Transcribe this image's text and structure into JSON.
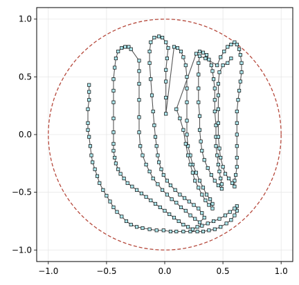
{
  "chart_data": {
    "type": "line",
    "title": "",
    "xlabel": "",
    "ylabel": "",
    "xlim": [
      -1.1,
      1.1
    ],
    "ylim": [
      -1.1,
      1.1
    ],
    "grid": true,
    "aspect": "equal",
    "x_ticks": [
      -1.0,
      -0.5,
      0.0,
      0.5,
      1.0
    ],
    "x_tick_labels": [
      "−1.0",
      "−0.5",
      "0.0",
      "0.5",
      "1.0"
    ],
    "y_ticks": [
      -1.0,
      -0.5,
      0.0,
      0.5,
      1.0
    ],
    "y_tick_labels": [
      "−1.0",
      "−0.5",
      "0.0",
      "0.5",
      "1.0"
    ],
    "colors": {
      "path_line": "#555555",
      "marker_fill": "#aee6ec",
      "marker_edge": "#000000",
      "circle": "#b5473a",
      "grid": "#e6e6e6"
    },
    "circle": {
      "center": [
        0,
        0
      ],
      "radius": 1.0,
      "style": "dashed"
    },
    "series": [
      {
        "marker": "square",
        "points": [
          [
            -0.65,
            0.43
          ],
          [
            -0.65,
            0.37
          ],
          [
            -0.65,
            0.3
          ],
          [
            -0.66,
            0.22
          ],
          [
            -0.66,
            0.1
          ],
          [
            -0.66,
            0.04
          ],
          [
            -0.65,
            -0.02
          ],
          [
            -0.64,
            -0.1
          ],
          [
            -0.63,
            -0.18
          ],
          [
            -0.62,
            -0.24
          ],
          [
            -0.6,
            -0.3
          ],
          [
            -0.58,
            -0.36
          ],
          [
            -0.56,
            -0.42
          ],
          [
            -0.53,
            -0.48
          ],
          [
            -0.5,
            -0.53
          ],
          [
            -0.47,
            -0.58
          ],
          [
            -0.44,
            -0.63
          ],
          [
            -0.41,
            -0.67
          ],
          [
            -0.37,
            -0.71
          ],
          [
            -0.33,
            -0.75
          ],
          [
            -0.29,
            -0.78
          ],
          [
            -0.24,
            -0.8
          ],
          [
            -0.19,
            -0.81
          ],
          [
            -0.13,
            -0.82
          ],
          [
            -0.07,
            -0.83
          ],
          [
            -0.01,
            -0.83
          ],
          [
            0.05,
            -0.84
          ],
          [
            0.1,
            -0.84
          ],
          [
            0.16,
            -0.84
          ],
          [
            0.22,
            -0.84
          ],
          [
            0.28,
            -0.84
          ],
          [
            0.33,
            -0.84
          ],
          [
            0.38,
            -0.83
          ],
          [
            0.43,
            -0.82
          ],
          [
            0.48,
            -0.8
          ],
          [
            0.53,
            -0.77
          ],
          [
            0.57,
            -0.74
          ],
          [
            0.6,
            -0.7
          ],
          [
            0.62,
            -0.66
          ],
          [
            0.62,
            -0.62
          ],
          [
            0.6,
            -0.64
          ],
          [
            0.56,
            -0.67
          ],
          [
            0.52,
            -0.7
          ],
          [
            0.47,
            -0.73
          ],
          [
            0.42,
            -0.75
          ],
          [
            0.37,
            -0.77
          ],
          [
            0.32,
            -0.79
          ],
          [
            0.28,
            -0.8
          ],
          [
            0.24,
            -0.82
          ],
          [
            0.2,
            -0.8
          ],
          [
            0.16,
            -0.78
          ],
          [
            0.12,
            -0.75
          ],
          [
            0.08,
            -0.72
          ],
          [
            0.04,
            -0.69
          ],
          [
            0.0,
            -0.66
          ],
          [
            -0.04,
            -0.63
          ],
          [
            -0.08,
            -0.6
          ],
          [
            -0.12,
            -0.57
          ],
          [
            -0.16,
            -0.54
          ],
          [
            -0.2,
            -0.51
          ],
          [
            -0.24,
            -0.48
          ],
          [
            -0.28,
            -0.45
          ],
          [
            -0.32,
            -0.42
          ],
          [
            -0.35,
            -0.38
          ],
          [
            -0.38,
            -0.34
          ],
          [
            -0.4,
            -0.3
          ],
          [
            -0.42,
            -0.25
          ],
          [
            -0.43,
            -0.2
          ],
          [
            -0.44,
            -0.14
          ],
          [
            -0.44,
            -0.08
          ],
          [
            -0.44,
            0.02
          ],
          [
            -0.44,
            0.14
          ],
          [
            -0.44,
            0.28
          ],
          [
            -0.44,
            0.38
          ],
          [
            -0.44,
            0.48
          ],
          [
            -0.43,
            0.58
          ],
          [
            -0.42,
            0.66
          ],
          [
            -0.4,
            0.72
          ],
          [
            -0.37,
            0.75
          ],
          [
            -0.34,
            0.76
          ],
          [
            -0.31,
            0.76
          ],
          [
            -0.29,
            0.74
          ],
          [
            -0.22,
            0.64
          ],
          [
            -0.22,
            0.55
          ],
          [
            -0.22,
            0.44
          ],
          [
            -0.22,
            0.3
          ],
          [
            -0.22,
            0.15
          ],
          [
            -0.22,
            0.02
          ],
          [
            -0.21,
            -0.1
          ],
          [
            -0.19,
            -0.18
          ],
          [
            -0.16,
            -0.26
          ],
          [
            -0.13,
            -0.32
          ],
          [
            -0.1,
            -0.38
          ],
          [
            -0.06,
            -0.43
          ],
          [
            -0.02,
            -0.48
          ],
          [
            0.02,
            -0.52
          ],
          [
            0.06,
            -0.56
          ],
          [
            0.1,
            -0.59
          ],
          [
            0.14,
            -0.63
          ],
          [
            0.18,
            -0.66
          ],
          [
            0.22,
            -0.7
          ],
          [
            0.26,
            -0.73
          ],
          [
            0.3,
            -0.76
          ],
          [
            0.34,
            -0.72
          ],
          [
            0.32,
            -0.68
          ],
          [
            0.29,
            -0.64
          ],
          [
            0.25,
            -0.61
          ],
          [
            0.21,
            -0.58
          ],
          [
            0.17,
            -0.55
          ],
          [
            0.13,
            -0.52
          ],
          [
            0.09,
            -0.48
          ],
          [
            0.05,
            -0.44
          ],
          [
            0.02,
            -0.4
          ],
          [
            -0.01,
            -0.35
          ],
          [
            -0.03,
            -0.3
          ],
          [
            -0.05,
            -0.24
          ],
          [
            -0.06,
            -0.18
          ],
          [
            -0.07,
            -0.1
          ],
          [
            -0.08,
            -0.02
          ],
          [
            -0.09,
            0.08
          ],
          [
            -0.1,
            0.2
          ],
          [
            -0.11,
            0.34
          ],
          [
            -0.12,
            0.48
          ],
          [
            -0.13,
            0.62
          ],
          [
            -0.13,
            0.72
          ],
          [
            -0.12,
            0.8
          ],
          [
            -0.09,
            0.84
          ],
          [
            -0.05,
            0.85
          ],
          [
            -0.02,
            0.84
          ],
          [
            0.01,
            0.8
          ],
          [
            0.03,
            0.75
          ],
          [
            0.02,
            0.66
          ],
          [
            0.01,
            0.56
          ],
          [
            0.01,
            0.46
          ],
          [
            0.01,
            0.32
          ],
          [
            0.01,
            0.18
          ],
          [
            0.08,
            0.76
          ],
          [
            0.11,
            0.75
          ],
          [
            0.14,
            0.72
          ],
          [
            0.16,
            0.67
          ],
          [
            0.18,
            0.6
          ],
          [
            0.19,
            0.5
          ],
          [
            0.19,
            0.4
          ],
          [
            0.19,
            0.28
          ],
          [
            0.19,
            0.12
          ],
          [
            0.19,
            0.0
          ],
          [
            0.2,
            -0.1
          ],
          [
            0.22,
            -0.18
          ],
          [
            0.24,
            -0.26
          ],
          [
            0.27,
            -0.33
          ],
          [
            0.3,
            -0.4
          ],
          [
            0.33,
            -0.46
          ],
          [
            0.36,
            -0.52
          ],
          [
            0.39,
            -0.56
          ],
          [
            0.41,
            -0.6
          ],
          [
            0.41,
            -0.64
          ],
          [
            0.38,
            -0.61
          ],
          [
            0.35,
            -0.57
          ],
          [
            0.32,
            -0.52
          ],
          [
            0.29,
            -0.46
          ],
          [
            0.26,
            -0.4
          ],
          [
            0.24,
            -0.33
          ],
          [
            0.22,
            -0.26
          ],
          [
            0.2,
            -0.18
          ],
          [
            0.18,
            -0.08
          ],
          [
            0.16,
            0.04
          ],
          [
            0.13,
            0.14
          ],
          [
            0.1,
            0.22
          ],
          [
            0.27,
            0.7
          ],
          [
            0.3,
            0.72
          ],
          [
            0.33,
            0.71
          ],
          [
            0.36,
            0.69
          ],
          [
            0.38,
            0.65
          ],
          [
            0.4,
            0.6
          ],
          [
            0.41,
            0.55
          ],
          [
            0.42,
            0.48
          ],
          [
            0.43,
            0.4
          ],
          [
            0.43,
            0.3
          ],
          [
            0.43,
            0.2
          ],
          [
            0.44,
            0.08
          ],
          [
            0.44,
            -0.02
          ],
          [
            0.44,
            -0.1
          ],
          [
            0.45,
            -0.18
          ],
          [
            0.46,
            -0.26
          ],
          [
            0.47,
            -0.32
          ],
          [
            0.48,
            -0.38
          ],
          [
            0.49,
            -0.43
          ],
          [
            0.49,
            -0.47
          ],
          [
            0.46,
            -0.44
          ],
          [
            0.43,
            -0.4
          ],
          [
            0.4,
            -0.35
          ],
          [
            0.37,
            -0.29
          ],
          [
            0.34,
            -0.22
          ],
          [
            0.32,
            -0.14
          ],
          [
            0.31,
            -0.06
          ],
          [
            0.3,
            0.04
          ],
          [
            0.3,
            0.16
          ],
          [
            0.29,
            0.28
          ],
          [
            0.29,
            0.4
          ],
          [
            0.29,
            0.52
          ],
          [
            0.29,
            0.62
          ],
          [
            0.3,
            0.68
          ],
          [
            0.35,
            0.66
          ],
          [
            0.45,
            0.6
          ],
          [
            0.48,
            0.67
          ],
          [
            0.51,
            0.72
          ],
          [
            0.54,
            0.76
          ],
          [
            0.57,
            0.78
          ],
          [
            0.6,
            0.8
          ],
          [
            0.62,
            0.78
          ],
          [
            0.64,
            0.74
          ],
          [
            0.65,
            0.69
          ],
          [
            0.66,
            0.62
          ],
          [
            0.66,
            0.54
          ],
          [
            0.65,
            0.46
          ],
          [
            0.64,
            0.38
          ],
          [
            0.63,
            0.3
          ],
          [
            0.62,
            0.2
          ],
          [
            0.62,
            0.1
          ],
          [
            0.62,
            0.0
          ],
          [
            0.62,
            -0.1
          ],
          [
            0.62,
            -0.2
          ],
          [
            0.62,
            -0.28
          ],
          [
            0.61,
            -0.35
          ],
          [
            0.6,
            -0.4
          ],
          [
            0.6,
            -0.45
          ],
          [
            0.58,
            -0.42
          ],
          [
            0.55,
            -0.38
          ],
          [
            0.52,
            -0.34
          ],
          [
            0.5,
            -0.28
          ],
          [
            0.48,
            -0.2
          ],
          [
            0.47,
            -0.12
          ],
          [
            0.46,
            -0.02
          ],
          [
            0.46,
            0.1
          ],
          [
            0.46,
            0.22
          ],
          [
            0.46,
            0.34
          ],
          [
            0.46,
            0.44
          ],
          [
            0.47,
            0.54
          ],
          [
            0.5,
            0.6
          ],
          [
            0.54,
            0.62
          ],
          [
            0.57,
            0.66
          ]
        ]
      }
    ]
  }
}
